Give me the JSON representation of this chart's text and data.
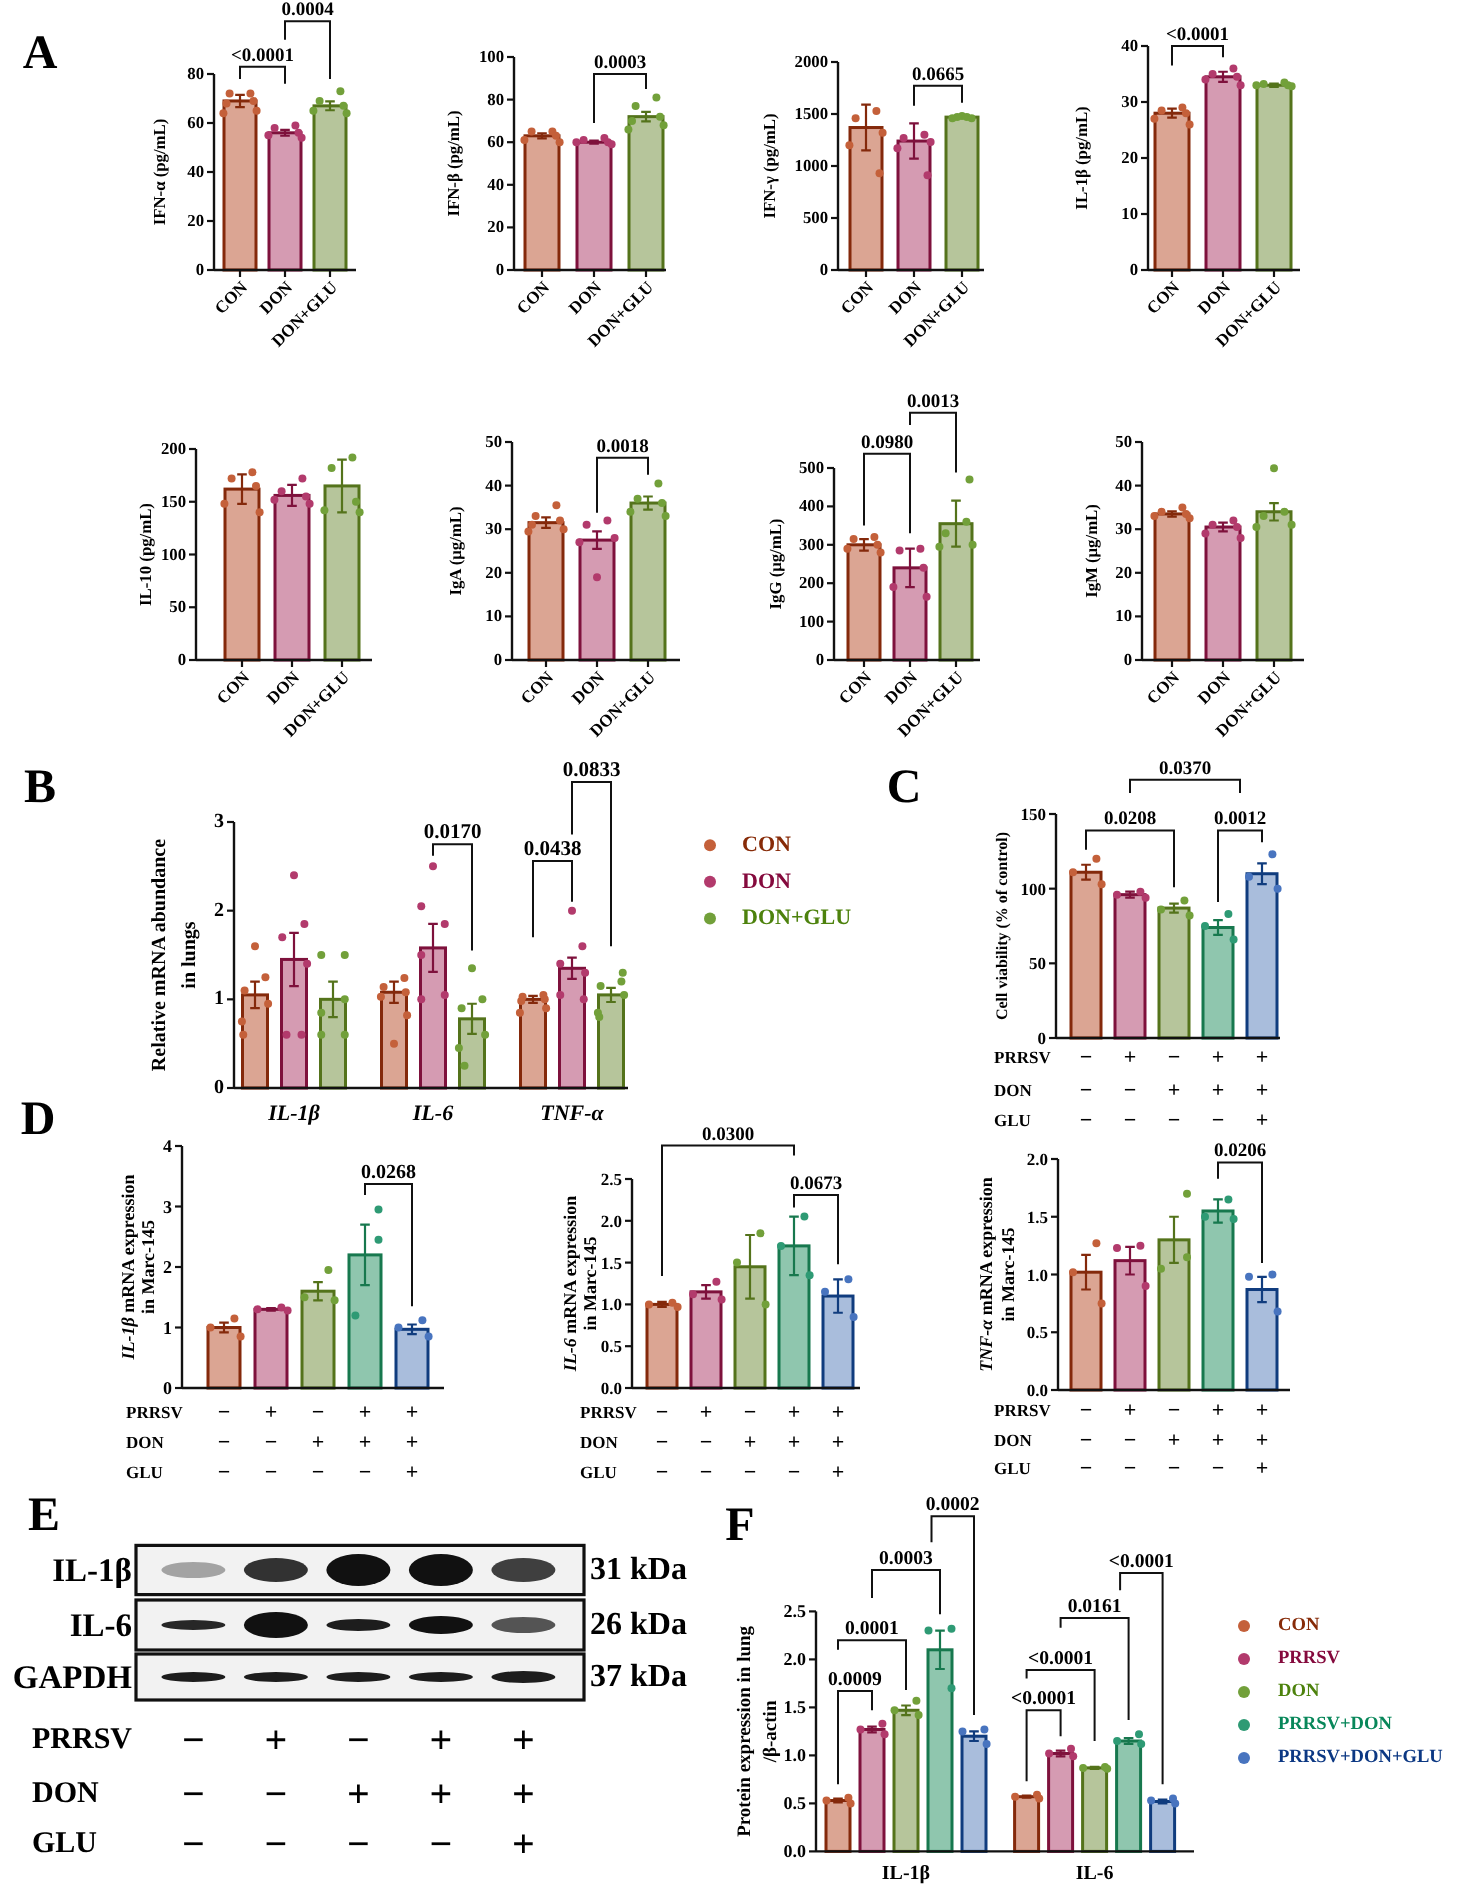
{
  "chart_data": [
    {
      "type": "bar",
      "title": "A",
      "ylabel": "IFN-α (pg/mL)",
      "categories": [
        "CON",
        "DON",
        "DON+GLU"
      ],
      "ylim": [
        0,
        80
      ],
      "yticks": [
        0,
        20,
        40,
        60,
        80
      ],
      "marker": "circle",
      "series": [
        {
          "type": "bar",
          "colors": [
            "#dba593",
            "#d59bb2",
            "#b6c59b"
          ],
          "values": [
            69,
            56,
            67
          ],
          "errors": [
            2.5,
            1.2,
            1.8
          ]
        },
        {
          "type": "scatter",
          "color": "#c4603a",
          "x": [
            "CON",
            "CON",
            "CON",
            "CON",
            "CON",
            "CON"
          ],
          "values": [
            72,
            72,
            69,
            68,
            65,
            64
          ]
        },
        {
          "type": "scatter",
          "color": "#b23a6c",
          "x": [
            "DON",
            "DON",
            "DON",
            "DON",
            "DON"
          ],
          "values": [
            59,
            58,
            56,
            55,
            54
          ]
        },
        {
          "type": "scatter",
          "color": "#72a03a",
          "x": [
            "DON+GLU",
            "DON+GLU",
            "DON+GLU",
            "DON+GLU",
            "DON+GLU"
          ],
          "values": [
            73,
            69,
            67,
            65,
            64
          ]
        }
      ],
      "annotations": [
        "<0.0001",
        "0.0004"
      ]
    },
    {
      "type": "bar",
      "ylabel": "IFN-β (pg/mL)",
      "categories": [
        "CON",
        "DON",
        "DON+GLU"
      ],
      "ylim": [
        0,
        100
      ],
      "yticks": [
        0,
        20,
        40,
        60,
        80,
        100
      ],
      "marker": "circle",
      "series": [
        {
          "type": "bar",
          "colors": [
            "#dba593",
            "#d59bb2",
            "#b6c59b"
          ],
          "values": [
            63,
            60,
            72
          ],
          "errors": [
            1.2,
            0.7,
            2.2
          ]
        },
        {
          "type": "scatter",
          "color": "#c4603a",
          "x": [
            "CON",
            "CON",
            "CON",
            "CON",
            "CON"
          ],
          "values": [
            65,
            65,
            63,
            61,
            60
          ]
        },
        {
          "type": "scatter",
          "color": "#b23a6c",
          "x": [
            "DON",
            "DON",
            "DON",
            "DON",
            "DON"
          ],
          "values": [
            62,
            61,
            60,
            60,
            59
          ]
        },
        {
          "type": "scatter",
          "color": "#72a03a",
          "x": [
            "DON+GLU",
            "DON+GLU",
            "DON+GLU",
            "DON+GLU",
            "DON+GLU",
            "DON+GLU"
          ],
          "values": [
            81,
            77,
            72,
            70,
            68,
            66
          ]
        }
      ],
      "annotations": [
        "0.0003"
      ]
    },
    {
      "type": "bar",
      "ylabel": "IFN-γ (pg/mL)",
      "categories": [
        "CON",
        "DON",
        "DON+GLU"
      ],
      "ylim": [
        0,
        2000
      ],
      "yticks": [
        0,
        500,
        1000,
        1500,
        2000
      ],
      "marker": "circle",
      "series": [
        {
          "type": "bar",
          "colors": [
            "#dba593",
            "#d59bb2",
            "#b6c59b"
          ],
          "values": [
            1370,
            1240,
            1470
          ],
          "errors": [
            220,
            170,
            null
          ]
        },
        {
          "type": "scatter",
          "color": "#c4603a",
          "x": [
            "CON",
            "CON",
            "CON",
            "CON",
            "CON"
          ],
          "values": [
            1530,
            1460,
            1320,
            1200,
            930
          ]
        },
        {
          "type": "scatter",
          "color": "#b23a6c",
          "x": [
            "DON",
            "DON",
            "DON",
            "DON",
            "DON"
          ],
          "values": [
            1300,
            1270,
            1230,
            1170,
            910
          ]
        },
        {
          "type": "scatter",
          "color": "#72a03a",
          "x": [
            "DON+GLU",
            "DON+GLU",
            "DON+GLU",
            "DON+GLU",
            "DON+GLU"
          ],
          "values": [
            1480,
            1470,
            1470,
            1460,
            1460
          ]
        }
      ],
      "annotations": [
        "0.0665"
      ]
    },
    {
      "type": "bar",
      "ylabel": "IL-1β (pg/mL)",
      "categories": [
        "CON",
        "DON",
        "DON+GLU"
      ],
      "ylim": [
        0,
        40
      ],
      "yticks": [
        0,
        10,
        20,
        30,
        40
      ],
      "marker": "circle",
      "series": [
        {
          "type": "bar",
          "colors": [
            "#dba593",
            "#d59bb2",
            "#b6c59b"
          ],
          "values": [
            28,
            34.5,
            33
          ],
          "errors": [
            0.8,
            0.9,
            0.3
          ]
        },
        {
          "type": "scatter",
          "color": "#c4603a",
          "x": [
            "CON",
            "CON",
            "CON",
            "CON",
            "CON"
          ],
          "values": [
            29,
            28.5,
            28,
            27,
            26
          ]
        },
        {
          "type": "scatter",
          "color": "#b23a6c",
          "x": [
            "DON",
            "DON",
            "DON",
            "DON",
            "DON"
          ],
          "values": [
            36,
            35,
            34.5,
            34,
            33
          ]
        },
        {
          "type": "scatter",
          "color": "#72a03a",
          "x": [
            "DON+GLU",
            "DON+GLU",
            "DON+GLU",
            "DON+GLU",
            "DON+GLU"
          ],
          "values": [
            33.5,
            33.2,
            33,
            33,
            32.8
          ]
        }
      ],
      "annotations": [
        "<0.0001"
      ]
    },
    {
      "type": "bar",
      "ylabel": "IL-10 (pg/mL)",
      "categories": [
        "CON",
        "DON",
        "DON+GLU"
      ],
      "ylim": [
        0,
        200
      ],
      "yticks": [
        0,
        50,
        100,
        150,
        200
      ],
      "marker": "circle",
      "series": [
        {
          "type": "bar",
          "colors": [
            "#dba593",
            "#d59bb2",
            "#b6c59b"
          ],
          "values": [
            162,
            156,
            165
          ],
          "errors": [
            14,
            10,
            25
          ]
        },
        {
          "type": "scatter",
          "color": "#c4603a",
          "x": [
            "CON",
            "CON",
            "CON",
            "CON",
            "CON"
          ],
          "values": [
            178,
            172,
            165,
            148,
            140
          ]
        },
        {
          "type": "scatter",
          "color": "#b23a6c",
          "x": [
            "DON",
            "DON",
            "DON",
            "DON",
            "DON"
          ],
          "values": [
            172,
            160,
            155,
            152,
            148
          ]
        },
        {
          "type": "scatter",
          "color": "#72a03a",
          "x": [
            "DON+GLU",
            "DON+GLU",
            "DON+GLU",
            "DON+GLU",
            "DON+GLU"
          ],
          "values": [
            192,
            182,
            150,
            142,
            140
          ]
        }
      ]
    },
    {
      "type": "bar",
      "ylabel": "IgA (μg/mL)",
      "categories": [
        "CON",
        "DON",
        "DON+GLU"
      ],
      "ylim": [
        0,
        50
      ],
      "yticks": [
        0,
        10,
        20,
        30,
        40,
        50
      ],
      "marker": "circle",
      "series": [
        {
          "type": "bar",
          "colors": [
            "#dba593",
            "#d59bb2",
            "#b6c59b"
          ],
          "values": [
            31.5,
            27.5,
            36
          ],
          "errors": [
            1.2,
            2,
            1.5
          ]
        },
        {
          "type": "scatter",
          "color": "#c4603a",
          "x": [
            "CON",
            "CON",
            "CON",
            "CON",
            "CON",
            "CON"
          ],
          "values": [
            35.5,
            33,
            32,
            31,
            30,
            29.5
          ]
        },
        {
          "type": "scatter",
          "color": "#b23a6c",
          "x": [
            "DON",
            "DON",
            "DON",
            "DON",
            "DON"
          ],
          "values": [
            32,
            31,
            28,
            27,
            19
          ]
        },
        {
          "type": "scatter",
          "color": "#72a03a",
          "x": [
            "DON+GLU",
            "DON+GLU",
            "DON+GLU",
            "DON+GLU",
            "DON+GLU"
          ],
          "values": [
            40.5,
            37,
            36,
            34,
            33
          ]
        }
      ],
      "annotations": [
        "0.0018"
      ]
    },
    {
      "type": "bar",
      "ylabel": "IgG (μg/mL)",
      "categories": [
        "CON",
        "DON",
        "DON+GLU"
      ],
      "ylim": [
        0,
        500
      ],
      "yticks": [
        0,
        100,
        200,
        300,
        400,
        500
      ],
      "marker": "circle",
      "series": [
        {
          "type": "bar",
          "colors": [
            "#dba593",
            "#d59bb2",
            "#b6c59b"
          ],
          "values": [
            300,
            240,
            355
          ],
          "errors": [
            15,
            50,
            60
          ]
        },
        {
          "type": "scatter",
          "color": "#c4603a",
          "x": [
            "CON",
            "CON",
            "CON",
            "CON",
            "CON"
          ],
          "values": [
            320,
            315,
            300,
            290,
            280
          ]
        },
        {
          "type": "scatter",
          "color": "#b23a6c",
          "x": [
            "DON",
            "DON",
            "DON",
            "DON",
            "DON"
          ],
          "values": [
            290,
            285,
            240,
            190,
            165
          ]
        },
        {
          "type": "scatter",
          "color": "#72a03a",
          "x": [
            "DON+GLU",
            "DON+GLU",
            "DON+GLU",
            "DON+GLU",
            "DON+GLU"
          ],
          "values": [
            470,
            360,
            330,
            300,
            295
          ]
        }
      ],
      "annotations": [
        "0.0980",
        "0.0013"
      ]
    },
    {
      "type": "bar",
      "ylabel": "IgM (μg/mL)",
      "categories": [
        "CON",
        "DON",
        "DON+GLU"
      ],
      "ylim": [
        0,
        50
      ],
      "yticks": [
        0,
        10,
        20,
        30,
        40,
        50
      ],
      "marker": "circle",
      "series": [
        {
          "type": "bar",
          "colors": [
            "#dba593",
            "#d59bb2",
            "#b6c59b"
          ],
          "values": [
            33.5,
            30.5,
            34
          ],
          "errors": [
            0.6,
            1,
            2
          ]
        },
        {
          "type": "scatter",
          "color": "#c4603a",
          "x": [
            "CON",
            "CON",
            "CON",
            "CON",
            "CON"
          ],
          "values": [
            35,
            34,
            33.5,
            33,
            32.5
          ]
        },
        {
          "type": "scatter",
          "color": "#b23a6c",
          "x": [
            "DON",
            "DON",
            "DON",
            "DON",
            "DON"
          ],
          "values": [
            32,
            31,
            30.5,
            29,
            28
          ]
        },
        {
          "type": "scatter",
          "color": "#72a03a",
          "x": [
            "DON+GLU",
            "DON+GLU",
            "DON+GLU",
            "DON+GLU",
            "DON+GLU"
          ],
          "values": [
            44,
            34,
            33,
            31,
            30.5
          ]
        }
      ]
    },
    {
      "type": "bar",
      "title": "B",
      "ylabel": "Relative mRNA abundance\nin lungs",
      "categories": [
        "IL-1β",
        "IL-6",
        "TNF-α"
      ],
      "ylim": [
        0,
        3
      ],
      "yticks": [
        0,
        1,
        2,
        3
      ],
      "marker": "circle",
      "legend": "right",
      "series": [
        {
          "type": "bar",
          "color": "#dba593",
          "values": [
            1.05,
            1.08,
            1
          ],
          "errors": [
            0.15,
            0.12,
            0.04
          ]
        },
        {
          "type": "bar",
          "color": "#d59bb2",
          "values": [
            1.45,
            1.58,
            1.35
          ],
          "errors": [
            0.3,
            0.27,
            0.12
          ]
        },
        {
          "type": "bar",
          "color": "#b6c59b",
          "values": [
            1,
            0.78,
            1.05
          ],
          "errors": [
            0.2,
            0.17,
            0.08
          ]
        },
        {
          "type": "scatter",
          "name": "CON",
          "color": "#c4603a",
          "x": [
            "IL-1β",
            "IL-1β",
            "IL-1β",
            "IL-1β",
            "IL-1β",
            "IL-1β",
            "IL-6",
            "IL-6",
            "IL-6",
            "IL-6",
            "IL-6",
            "IL-6",
            "TNF-α",
            "TNF-α",
            "TNF-α",
            "TNF-α",
            "TNF-α",
            "TNF-α"
          ],
          "values": [
            1.6,
            1.25,
            1.1,
            0.95,
            0.75,
            0.6,
            1.24,
            1.14,
            1.08,
            1.03,
            0.82,
            0.5,
            1.05,
            1.03,
            1,
            0.98,
            0.9,
            0.85
          ]
        },
        {
          "type": "scatter",
          "name": "DON",
          "color": "#b23a6c",
          "x": [
            "IL-1β",
            "IL-1β",
            "IL-1β",
            "IL-1β",
            "IL-1β",
            "IL-1β",
            "IL-6",
            "IL-6",
            "IL-6",
            "IL-6",
            "IL-6",
            "IL-6",
            "TNF-α",
            "TNF-α",
            "TNF-α",
            "TNF-α",
            "TNF-α",
            "TNF-α"
          ],
          "values": [
            2.4,
            1.85,
            1.7,
            1.4,
            0.6,
            0.6,
            2.5,
            2.05,
            1.85,
            1.5,
            1.05,
            1,
            2,
            1.6,
            1.4,
            1.3,
            1.05,
            1
          ]
        },
        {
          "type": "scatter",
          "name": "DON+GLU",
          "color": "#72a03a",
          "x": [
            "IL-1β",
            "IL-1β",
            "IL-1β",
            "IL-1β",
            "IL-1β",
            "IL-1β",
            "IL-6",
            "IL-6",
            "IL-6",
            "IL-6",
            "IL-6",
            "IL-6",
            "TNF-α",
            "TNF-α",
            "TNF-α",
            "TNF-α",
            "TNF-α",
            "TNF-α"
          ],
          "values": [
            1.5,
            1.5,
            1,
            0.85,
            0.6,
            0.6,
            1.35,
            1,
            0.9,
            0.6,
            0.45,
            0.25,
            1.3,
            1.2,
            1.15,
            1.05,
            0.85,
            0.8
          ]
        }
      ],
      "annotations": [
        "0.0170",
        "0.0438",
        "0.0833"
      ]
    },
    {
      "type": "bar",
      "title": "C",
      "ylabel": "Cell viability (% of control)",
      "categories": [
        "−\n−\n−",
        "+\n−\n−",
        "−\n+\n−",
        "+\n+\n−",
        "+\n+\n+"
      ],
      "ylim": [
        0,
        150
      ],
      "yticks": [
        0,
        50,
        100,
        150
      ],
      "marker": "circle",
      "series": [
        {
          "type": "bar",
          "colors": [
            "#dba593",
            "#d59bb2",
            "#b6c59b",
            "#8fc6ae",
            "#a9bddc"
          ],
          "values": [
            111,
            96,
            87,
            74,
            110
          ],
          "errors": [
            5,
            2,
            3,
            5,
            7
          ]
        },
        {
          "type": "scatter",
          "color": "#c4603a",
          "x": [
            "−\n−\n−",
            "−\n−\n−",
            "−\n−\n−"
          ],
          "values": [
            120,
            111,
            103
          ]
        },
        {
          "type": "scatter",
          "color": "#b23a6c",
          "x": [
            "+\n−\n−",
            "+\n−\n−",
            "+\n−\n−"
          ],
          "values": [
            98,
            96,
            94
          ]
        },
        {
          "type": "scatter",
          "color": "#72a03a",
          "x": [
            "−\n+\n−",
            "−\n+\n−",
            "−\n+\n−"
          ],
          "values": [
            92,
            86,
            82
          ]
        },
        {
          "type": "scatter",
          "color": "#2e9a74",
          "x": [
            "+\n+\n−",
            "+\n+\n−",
            "+\n+\n−"
          ],
          "values": [
            83,
            75,
            66
          ]
        },
        {
          "type": "scatter",
          "color": "#4874bf",
          "x": [
            "+\n+\n+",
            "+\n+\n+",
            "+\n+\n+"
          ],
          "values": [
            123,
            108,
            100
          ]
        }
      ],
      "annotations": [
        "0.0370",
        "0.0208",
        "0.0012",
        "PRRSV",
        "DON",
        "GLU"
      ]
    },
    {
      "type": "bar",
      "title": "D",
      "ylabel": "IL-1β mRNA expression\nin Marc-145",
      "categories": [
        "−\n−\n−",
        "+\n−\n−",
        "−\n+\n−",
        "+\n+\n−",
        "+\n+\n+"
      ],
      "ylim": [
        0,
        4
      ],
      "yticks": [
        0,
        1,
        2,
        3,
        4
      ],
      "marker": "circle",
      "series": [
        {
          "type": "bar",
          "colors": [
            "#dba593",
            "#d59bb2",
            "#b6c59b",
            "#8fc6ae",
            "#a9bddc"
          ],
          "values": [
            1,
            1.3,
            1.6,
            2.2,
            0.97
          ],
          "errors": [
            0.08,
            0.02,
            0.15,
            0.5,
            0.08
          ]
        },
        {
          "type": "scatter",
          "color": "#c4603a",
          "x": [
            "−\n−\n−",
            "−\n−\n−",
            "−\n−\n−"
          ],
          "values": [
            1.15,
            1,
            0.85
          ]
        },
        {
          "type": "scatter",
          "color": "#b23a6c",
          "x": [
            "+\n−\n−",
            "+\n−\n−",
            "+\n−\n−"
          ],
          "values": [
            1.33,
            1.3,
            1.28
          ]
        },
        {
          "type": "scatter",
          "color": "#72a03a",
          "x": [
            "−\n+\n−",
            "−\n+\n−",
            "−\n+\n−"
          ],
          "values": [
            1.95,
            1.5,
            1.45
          ]
        },
        {
          "type": "scatter",
          "color": "#2e9a74",
          "x": [
            "+\n+\n−",
            "+\n+\n−",
            "+\n+\n−"
          ],
          "values": [
            2.95,
            2.45,
            1.2
          ]
        },
        {
          "type": "scatter",
          "color": "#4874bf",
          "x": [
            "+\n+\n+",
            "+\n+\n+",
            "+\n+\n+"
          ],
          "values": [
            1.12,
            1,
            0.85
          ]
        }
      ],
      "annotations": [
        "0.0268",
        "PRRSV",
        "DON",
        "GLU"
      ]
    },
    {
      "type": "bar",
      "ylabel": "IL-6 mRNA expression\nin Marc-145",
      "categories": [
        "−\n−\n−",
        "+\n−\n−",
        "−\n+\n−",
        "+\n+\n−",
        "+\n+\n+"
      ],
      "ylim": [
        0,
        2.5
      ],
      "yticks": [
        {
          "value": 0,
          "label": "0.0"
        },
        0.5,
        {
          "value": 1,
          "label": "1.0"
        },
        1.5,
        {
          "value": 2,
          "label": "2.0"
        },
        2.5
      ],
      "marker": "circle",
      "series": [
        {
          "type": "bar",
          "colors": [
            "#dba593",
            "#d59bb2",
            "#b6c59b",
            "#8fc6ae",
            "#a9bddc"
          ],
          "values": [
            1,
            1.15,
            1.45,
            1.7,
            1.1
          ],
          "errors": [
            0.03,
            0.08,
            0.38,
            0.35,
            0.2
          ]
        },
        {
          "type": "scatter",
          "color": "#c4603a",
          "x": [
            "−\n−\n−",
            "−\n−\n−",
            "−\n−\n−"
          ],
          "values": [
            1.02,
            1,
            0.97
          ]
        },
        {
          "type": "scatter",
          "color": "#b23a6c",
          "x": [
            "+\n−\n−",
            "+\n−\n−",
            "+\n−\n−"
          ],
          "values": [
            1.27,
            1.12,
            1.06
          ]
        },
        {
          "type": "scatter",
          "color": "#72a03a",
          "x": [
            "−\n+\n−",
            "−\n+\n−",
            "−\n+\n−"
          ],
          "values": [
            1.85,
            1.5,
            1
          ]
        },
        {
          "type": "scatter",
          "color": "#2e9a74",
          "x": [
            "+\n+\n−",
            "+\n+\n−",
            "+\n+\n−"
          ],
          "values": [
            2.05,
            1.7,
            1.35
          ]
        },
        {
          "type": "scatter",
          "color": "#4874bf",
          "x": [
            "+\n+\n+",
            "+\n+\n+",
            "+\n+\n+"
          ],
          "values": [
            1.3,
            1.15,
            0.85
          ]
        }
      ],
      "annotations": [
        "0.0300",
        "0.0673",
        "PRRSV",
        "DON",
        "GLU"
      ]
    },
    {
      "type": "bar",
      "ylabel": "TNF-α mRNA expression\nin Marc-145",
      "categories": [
        "−\n−\n−",
        "+\n−\n−",
        "−\n+\n−",
        "+\n+\n−",
        "+\n+\n+"
      ],
      "ylim": [
        0,
        2
      ],
      "yticks": [
        {
          "value": 0,
          "label": "0.0"
        },
        0.5,
        {
          "value": 1,
          "label": "1.0"
        },
        1.5,
        {
          "value": 2,
          "label": "2.0"
        }
      ],
      "marker": "circle",
      "series": [
        {
          "type": "bar",
          "colors": [
            "#dba593",
            "#d59bb2",
            "#b6c59b",
            "#8fc6ae",
            "#a9bddc"
          ],
          "values": [
            1.02,
            1.12,
            1.3,
            1.55,
            0.87
          ],
          "errors": [
            0.15,
            0.12,
            0.2,
            0.1,
            0.11
          ]
        },
        {
          "type": "scatter",
          "color": "#c4603a",
          "x": [
            "−\n−\n−",
            "−\n−\n−",
            "−\n−\n−"
          ],
          "values": [
            1.27,
            1.02,
            0.75
          ]
        },
        {
          "type": "scatter",
          "color": "#b23a6c",
          "x": [
            "+\n−\n−",
            "+\n−\n−",
            "+\n−\n−"
          ],
          "values": [
            1.25,
            1.23,
            0.9
          ]
        },
        {
          "type": "scatter",
          "color": "#72a03a",
          "x": [
            "−\n+\n−",
            "−\n+\n−",
            "−\n+\n−"
          ],
          "values": [
            1.7,
            1.15,
            1.05
          ]
        },
        {
          "type": "scatter",
          "color": "#2e9a74",
          "x": [
            "+\n+\n−",
            "+\n+\n−",
            "+\n+\n−"
          ],
          "values": [
            1.65,
            1.5,
            1.48
          ]
        },
        {
          "type": "scatter",
          "color": "#4874bf",
          "x": [
            "+\n+\n+",
            "+\n+\n+",
            "+\n+\n+"
          ],
          "values": [
            1,
            0.98,
            0.68
          ]
        }
      ],
      "annotations": [
        "0.0206",
        "PRRSV",
        "DON",
        "GLU"
      ]
    },
    {
      "type": "other",
      "title": "E",
      "categories": [
        "−\n−\n−",
        "+\n−\n−",
        "−\n+\n−",
        "+\n+\n−",
        "+\n+\n+"
      ],
      "annotations": [
        "IL-1β",
        "IL-6",
        "GAPDH",
        "31 kDa",
        "26 kDa",
        "37 kDa",
        "PRRSV",
        "DON",
        "GLU"
      ]
    },
    {
      "type": "bar",
      "title": "F",
      "ylabel": "Protein expression in lung\n/β-actin",
      "categories": [
        "IL-1β",
        "IL-6"
      ],
      "ylim": [
        0,
        2.5
      ],
      "yticks": [
        {
          "value": 0,
          "label": "0.0"
        },
        0.5,
        {
          "value": 1,
          "label": "1.0"
        },
        1.5,
        {
          "value": 2,
          "label": "2.0"
        },
        2.5
      ],
      "marker": "circle",
      "legend": "right",
      "series": [
        {
          "type": "bar",
          "color": "#dba593",
          "values": [
            0.53,
            0.57
          ],
          "errors": [
            0.02,
            0.01
          ]
        },
        {
          "type": "bar",
          "color": "#d59bb2",
          "values": [
            1.27,
            1.02
          ],
          "errors": [
            0.03,
            0.03
          ]
        },
        {
          "type": "bar",
          "color": "#b6c59b",
          "values": [
            1.47,
            0.87
          ],
          "errors": [
            0.05,
            0.01
          ]
        },
        {
          "type": "bar",
          "color": "#8fc6ae",
          "values": [
            2.1,
            1.15
          ],
          "errors": [
            0.2,
            0.03
          ]
        },
        {
          "type": "bar",
          "color": "#a9bddc",
          "values": [
            1.2,
            0.52
          ],
          "errors": [
            0.05,
            0.02
          ]
        },
        {
          "type": "scatter",
          "name": "CON",
          "color": "#c4603a",
          "x": [
            "IL-1β",
            "IL-1β",
            "IL-1β",
            "IL-6",
            "IL-6",
            "IL-6"
          ],
          "values": [
            0.56,
            0.53,
            0.5,
            0.59,
            0.57,
            0.55
          ]
        },
        {
          "type": "scatter",
          "name": "PRRSV",
          "color": "#b23a6c",
          "x": [
            "IL-1β",
            "IL-1β",
            "IL-1β",
            "IL-6",
            "IL-6",
            "IL-6"
          ],
          "values": [
            1.33,
            1.27,
            1.22,
            1.07,
            1.02,
            0.99
          ]
        },
        {
          "type": "scatter",
          "name": "DON",
          "color": "#72a03a",
          "x": [
            "IL-1β",
            "IL-1β",
            "IL-1β",
            "IL-6",
            "IL-6",
            "IL-6"
          ],
          "values": [
            1.57,
            1.47,
            1.42,
            0.88,
            0.87,
            0.86
          ]
        },
        {
          "type": "scatter",
          "name": "PRRSV+DON",
          "color": "#2e9a74",
          "x": [
            "IL-1β",
            "IL-1β",
            "IL-1β",
            "IL-6",
            "IL-6",
            "IL-6"
          ],
          "values": [
            2.32,
            2.3,
            1.7,
            1.22,
            1.15,
            1.12
          ]
        },
        {
          "type": "scatter",
          "name": "PRRSV+DON+GLU",
          "color": "#4874bf",
          "x": [
            "IL-1β",
            "IL-1β",
            "IL-1β",
            "IL-6",
            "IL-6",
            "IL-6"
          ],
          "values": [
            1.27,
            1.25,
            1.12,
            0.55,
            0.53,
            0.5
          ]
        }
      ],
      "annotations": [
        "0.0009",
        "0.0001",
        "0.0003",
        "0.0002",
        "<0.0001",
        "<0.0001",
        "0.0161",
        "<0.0001"
      ]
    }
  ]
}
